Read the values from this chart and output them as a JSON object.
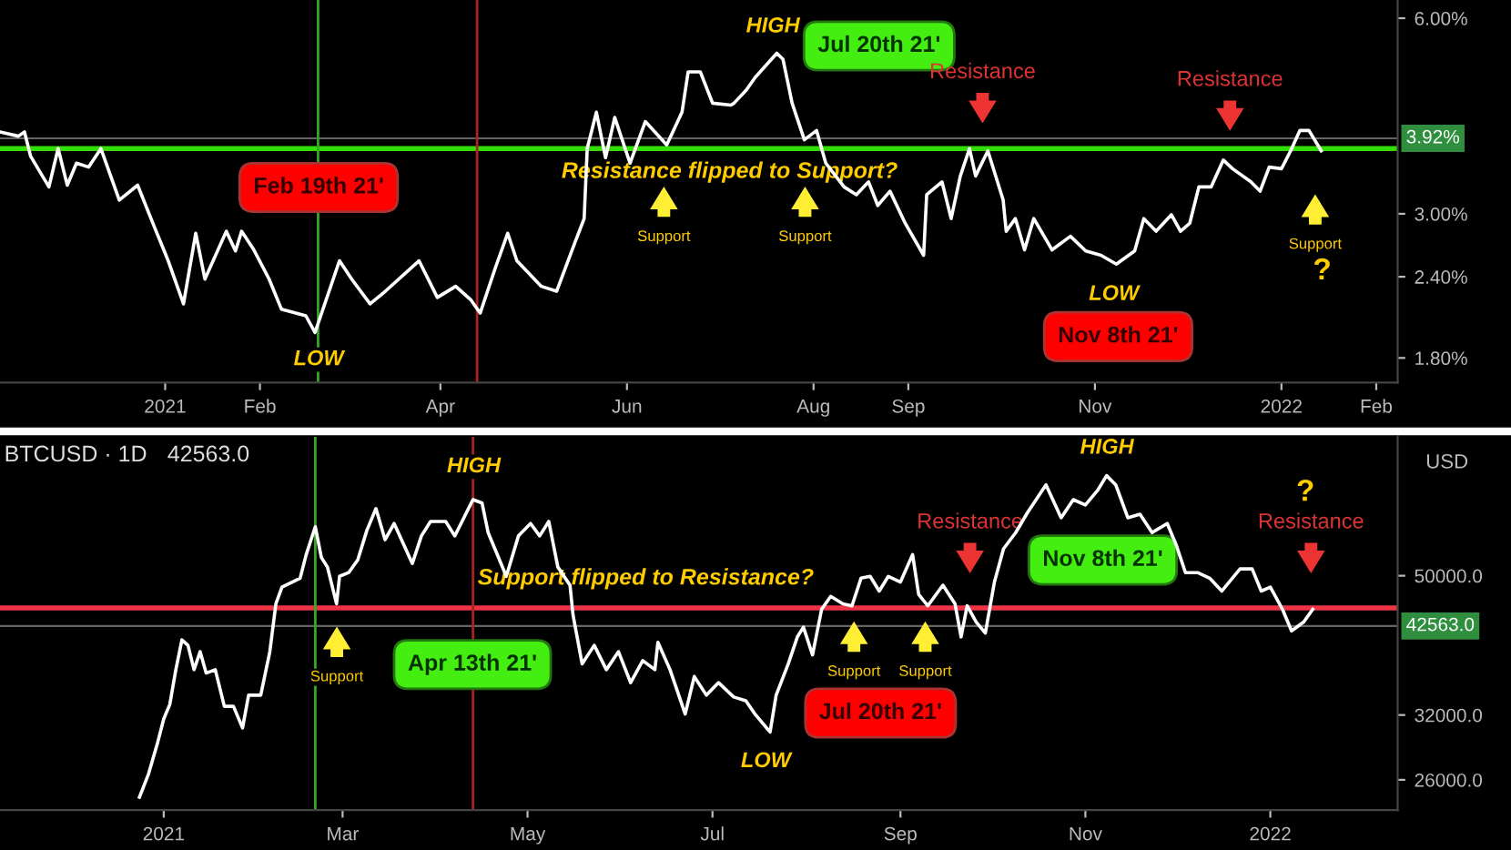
{
  "chart_data": [
    {
      "type": "line",
      "log": true,
      "color": "#ffffff",
      "line_style": "solid",
      "grid": false,
      "legend": false,
      "x": [
        "2020-11-08",
        "2020-11-14",
        "2020-11-16",
        "2020-11-18",
        "2020-11-24",
        "2020-11-27",
        "2020-11-30",
        "2020-12-03",
        "2020-12-07",
        "2020-12-11",
        "2020-12-17",
        "2020-12-23",
        "2020-12-28",
        "2021-01-02",
        "2021-01-07",
        "2021-01-11",
        "2021-01-14",
        "2021-01-21",
        "2021-01-24",
        "2021-01-26",
        "2021-01-30",
        "2021-02-04",
        "2021-02-08",
        "2021-02-16",
        "2021-02-19",
        "2021-02-27",
        "2021-03-03",
        "2021-03-09",
        "2021-03-14",
        "2021-03-25",
        "2021-03-31",
        "2021-04-06",
        "2021-04-11",
        "2021-04-14",
        "2021-04-19",
        "2021-04-23",
        "2021-04-26",
        "2021-05-04",
        "2021-05-09",
        "2021-05-15",
        "2021-05-18",
        "2021-05-19",
        "2021-05-22",
        "2021-05-25",
        "2021-05-28",
        "2021-06-02",
        "2021-06-07",
        "2021-06-14",
        "2021-06-19",
        "2021-06-21",
        "2021-06-25",
        "2021-06-29",
        "2021-07-05",
        "2021-07-06",
        "2021-07-10",
        "2021-07-13",
        "2021-07-20",
        "2021-07-22",
        "2021-07-25",
        "2021-07-29",
        "2021-08-02",
        "2021-08-05",
        "2021-08-11",
        "2021-08-15",
        "2021-08-19",
        "2021-08-22",
        "2021-08-26",
        "2021-08-31",
        "2021-09-06",
        "2021-09-07",
        "2021-09-12",
        "2021-09-15",
        "2021-09-18",
        "2021-09-21",
        "2021-09-23",
        "2021-09-27",
        "2021-10-02",
        "2021-10-03",
        "2021-10-06",
        "2021-10-09",
        "2021-10-12",
        "2021-10-18",
        "2021-10-24",
        "2021-10-29",
        "2021-11-03",
        "2021-11-08",
        "2021-11-14",
        "2021-11-17",
        "2021-11-21",
        "2021-11-26",
        "2021-11-29",
        "2021-12-02",
        "2021-12-05",
        "2021-12-09",
        "2021-12-13",
        "2021-12-16",
        "2021-12-22",
        "2021-12-25",
        "2021-12-28",
        "2022-01-01",
        "2022-01-04",
        "2022-01-07",
        "2022-01-10",
        "2022-01-14"
      ],
      "values": [
        4.01,
        3.95,
        4.01,
        3.68,
        3.3,
        3.78,
        3.32,
        3.59,
        3.54,
        3.78,
        3.15,
        3.32,
        2.9,
        2.54,
        2.18,
        2.8,
        2.38,
        2.82,
        2.63,
        2.82,
        2.64,
        2.38,
        2.14,
        2.09,
        1.97,
        2.54,
        2.38,
        2.18,
        2.28,
        2.54,
        2.23,
        2.32,
        2.21,
        2.11,
        2.48,
        2.8,
        2.54,
        2.32,
        2.28,
        2.71,
        2.95,
        3.78,
        4.3,
        3.66,
        4.22,
        3.59,
        4.16,
        3.83,
        4.3,
        4.96,
        4.96,
        4.44,
        4.41,
        4.44,
        4.65,
        4.87,
        5.3,
        5.19,
        4.44,
        3.9,
        4.03,
        3.59,
        3.3,
        3.21,
        3.36,
        3.09,
        3.25,
        2.9,
        2.59,
        3.21,
        3.36,
        2.95,
        3.43,
        3.78,
        3.43,
        3.75,
        3.15,
        2.82,
        2.95,
        2.64,
        2.95,
        2.64,
        2.77,
        2.63,
        2.59,
        2.51,
        2.63,
        2.95,
        2.82,
        2.99,
        2.82,
        2.9,
        3.3,
        3.3,
        3.63,
        3.52,
        3.36,
        3.25,
        3.54,
        3.52,
        3.75,
        4.03,
        4.03,
        3.75
      ],
      "xlim": [
        "2020-11-08",
        "2022-02-08"
      ],
      "xticks": [
        {
          "value": "2021-01-01",
          "label": "2021"
        },
        {
          "value": "2021-02-01",
          "label": "Feb"
        },
        {
          "value": "2021-04-01",
          "label": "Apr"
        },
        {
          "value": "2021-06-01",
          "label": "Jun"
        },
        {
          "value": "2021-08-01",
          "label": "Aug"
        },
        {
          "value": "2021-09-01",
          "label": "Sep"
        },
        {
          "value": "2021-11-01",
          "label": "Nov"
        },
        {
          "value": "2022-01-01",
          "label": "2022"
        },
        {
          "value": "2022-02-01",
          "label": "Feb"
        }
      ],
      "ylim": [
        1.65,
        6.4
      ],
      "yticks": [
        {
          "value": 1.8,
          "label": "1.80%"
        },
        {
          "value": 2.4,
          "label": "2.40%"
        },
        {
          "value": 3.0,
          "label": "3.00%"
        },
        {
          "value": 6.0,
          "label": "6.00%"
        }
      ],
      "ref_lines": [
        {
          "axis": "y",
          "value": 3.78,
          "color": "#33dd00",
          "line_style": "solid"
        },
        {
          "axis": "y",
          "value": 3.92,
          "label": "3.92%",
          "color": "#666666",
          "line_style": "solid"
        },
        {
          "axis": "x",
          "value": "2021-02-20",
          "color": "#33aa22",
          "line_style": "solid"
        },
        {
          "axis": "x",
          "value": "2021-04-13",
          "color": "#aa2222",
          "line_style": "solid"
        }
      ],
      "annotations": [
        "Feb 19th 21'",
        "LOW",
        "HIGH",
        "Jul 20th 21'",
        "Resistance",
        "Resistance",
        "Resistance flipped to Support?",
        "Support",
        "Support",
        "Support",
        "?",
        "LOW",
        "Nov 8th 21'"
      ]
    },
    {
      "type": "line",
      "log": true,
      "color": "#ffffff",
      "line_style": "solid",
      "grid": false,
      "legend": false,
      "title": "BTCUSD · 1D",
      "subtitle": "42563.0",
      "ylabel": "USD",
      "x": [
        "2020-12-24",
        "2020-12-27",
        "2020-12-30",
        "2021-01-01",
        "2021-01-03",
        "2021-01-05",
        "2021-01-07",
        "2021-01-09",
        "2021-01-11",
        "2021-01-13",
        "2021-01-15",
        "2021-01-18",
        "2021-01-21",
        "2021-01-24",
        "2021-01-27",
        "2021-01-29",
        "2021-02-02",
        "2021-02-05",
        "2021-02-07",
        "2021-02-09",
        "2021-02-15",
        "2021-02-17",
        "2021-02-20",
        "2021-02-22",
        "2021-02-24",
        "2021-02-27",
        "2021-02-28",
        "2021-03-03",
        "2021-03-06",
        "2021-03-09",
        "2021-03-12",
        "2021-03-15",
        "2021-03-18",
        "2021-03-24",
        "2021-03-27",
        "2021-03-30",
        "2021-04-04",
        "2021-04-07",
        "2021-04-13",
        "2021-04-16",
        "2021-04-18",
        "2021-04-24",
        "2021-04-28",
        "2021-05-02",
        "2021-05-05",
        "2021-05-08",
        "2021-05-11",
        "2021-05-15",
        "2021-05-16",
        "2021-05-19",
        "2021-05-23",
        "2021-05-27",
        "2021-05-31",
        "2021-06-04",
        "2021-06-08",
        "2021-06-12",
        "2021-06-13",
        "2021-06-17",
        "2021-06-22",
        "2021-06-25",
        "2021-06-29",
        "2021-07-03",
        "2021-07-08",
        "2021-07-12",
        "2021-07-15",
        "2021-07-20",
        "2021-07-22",
        "2021-07-26",
        "2021-07-29",
        "2021-07-31",
        "2021-08-03",
        "2021-08-06",
        "2021-08-09",
        "2021-08-13",
        "2021-08-16",
        "2021-08-19",
        "2021-08-22",
        "2021-08-25",
        "2021-08-28",
        "2021-09-01",
        "2021-09-05",
        "2021-09-07",
        "2021-09-10",
        "2021-09-15",
        "2021-09-19",
        "2021-09-21",
        "2021-09-23",
        "2021-09-26",
        "2021-09-29",
        "2021-10-02",
        "2021-10-05",
        "2021-10-09",
        "2021-10-13",
        "2021-10-19",
        "2021-10-24",
        "2021-10-28",
        "2021-11-01",
        "2021-11-05",
        "2021-11-08",
        "2021-11-11",
        "2021-11-15",
        "2021-11-19",
        "2021-11-23",
        "2021-11-28",
        "2021-12-01",
        "2021-12-04",
        "2021-12-08",
        "2021-12-12",
        "2021-12-16",
        "2021-12-22",
        "2021-12-26",
        "2021-12-29",
        "2022-01-01",
        "2022-01-05",
        "2022-01-08",
        "2022-01-12",
        "2022-01-15"
      ],
      "values": [
        24600,
        26500,
        29300,
        31600,
        33100,
        37000,
        40700,
        40000,
        37000,
        39200,
        36600,
        37000,
        32900,
        32900,
        30700,
        34100,
        34100,
        39200,
        45700,
        48200,
        49600,
        53500,
        58500,
        53000,
        51400,
        45700,
        49900,
        50500,
        52600,
        57800,
        62000,
        56100,
        59100,
        52000,
        56800,
        59500,
        59500,
        56800,
        63800,
        63100,
        57400,
        49900,
        56800,
        59100,
        56800,
        59500,
        51400,
        48500,
        44100,
        37700,
        40000,
        37000,
        39200,
        35500,
        38100,
        37000,
        40400,
        37000,
        32100,
        36200,
        34100,
        35500,
        33900,
        33500,
        32100,
        30300,
        34100,
        37700,
        41100,
        42400,
        38800,
        44900,
        46800,
        45700,
        45400,
        49600,
        49900,
        47600,
        49900,
        49000,
        53500,
        47100,
        45400,
        48500,
        45700,
        41100,
        45400,
        43100,
        41600,
        49000,
        54500,
        57400,
        61300,
        66900,
        60200,
        63800,
        62700,
        65700,
        68900,
        66900,
        60200,
        60900,
        57400,
        59100,
        55100,
        50500,
        50500,
        49600,
        47600,
        51100,
        51100,
        47600,
        48200,
        44900,
        41900,
        43100,
        44900
      ],
      "xlim": [
        "2020-11-08",
        "2022-02-12"
      ],
      "xticks": [
        {
          "value": "2021-01-01",
          "label": "2021"
        },
        {
          "value": "2021-03-01",
          "label": "Mar"
        },
        {
          "value": "2021-05-01",
          "label": "May"
        },
        {
          "value": "2021-07-01",
          "label": "Jul"
        },
        {
          "value": "2021-09-01",
          "label": "Sep"
        },
        {
          "value": "2021-11-01",
          "label": "Nov"
        },
        {
          "value": "2022-01-01",
          "label": "2022"
        }
      ],
      "ylim": [
        23600,
        78000
      ],
      "yticks": [
        {
          "value": 26000,
          "label": "26000.0"
        },
        {
          "value": 32000,
          "label": "32000.0"
        },
        {
          "value": 50000,
          "label": "50000.0"
        }
      ],
      "ref_lines": [
        {
          "axis": "y",
          "value": 45100,
          "color": "#ee3344",
          "line_style": "solid"
        },
        {
          "axis": "y",
          "value": 42563,
          "label": "42563.0",
          "color": "#666666",
          "line_style": "solid"
        },
        {
          "axis": "x",
          "value": "2021-02-20",
          "color": "#33aa22",
          "line_style": "solid"
        },
        {
          "axis": "x",
          "value": "2021-04-13",
          "color": "#aa2222",
          "line_style": "solid"
        }
      ],
      "annotations": [
        "HIGH",
        "Apr 13th 21'",
        "Support",
        "Support flipped to Resistance?",
        "LOW",
        "Jul 20th 21'",
        "Support",
        "Support",
        "Resistance",
        "HIGH",
        "Nov 8th 21'",
        "Resistance",
        "?"
      ]
    }
  ]
}
